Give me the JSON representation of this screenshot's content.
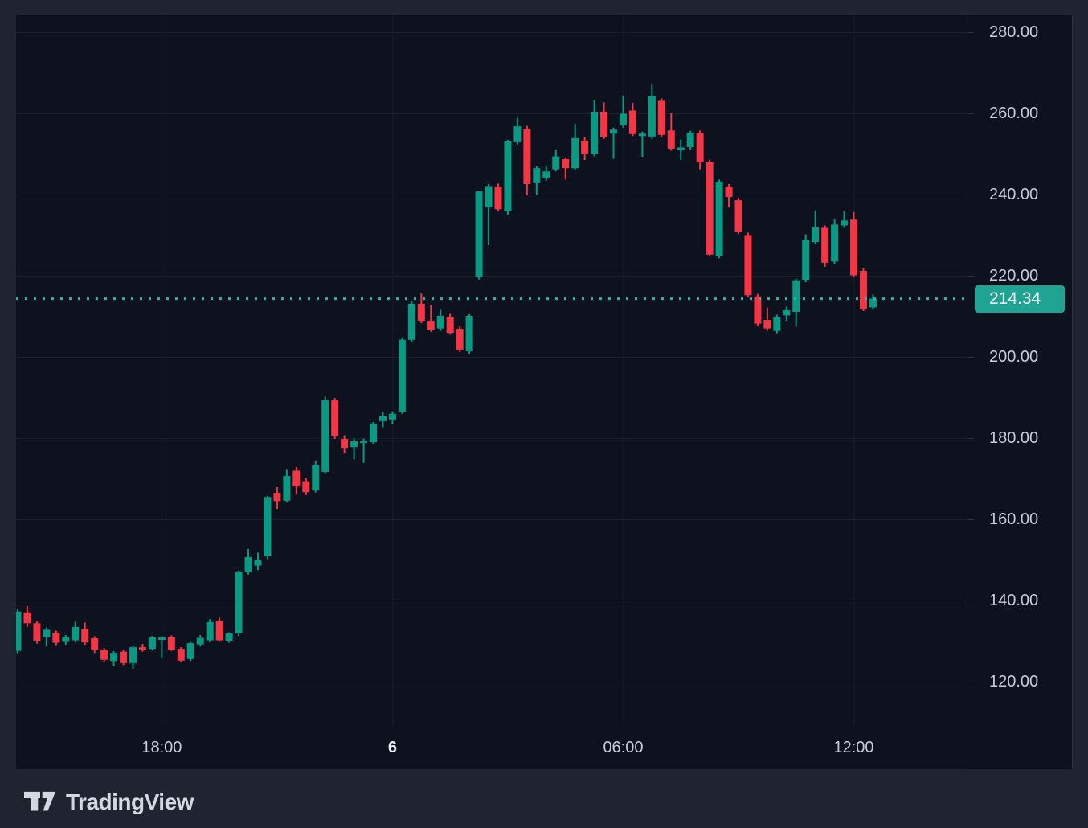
{
  "footer": {
    "brand": "TradingView"
  },
  "last_price_badge": {
    "label": "214.34"
  },
  "colors": {
    "up": "#0a9a84",
    "down": "#f23645",
    "price_line": "#2cb8a0",
    "badge_bg": "#1fa392",
    "grid": "#1a1f2d",
    "axis_border": "#2c3240",
    "axis_text": "#c9cdd8",
    "axis_text_bold": "#eceef2",
    "chart_bg": "#0e121f",
    "outer_bg": "#1f2430"
  },
  "chart_data": {
    "type": "candlestick",
    "title": "",
    "interval_minutes": 15,
    "last_price": 214.34,
    "ylim": [
      109.12,
      284.16
    ],
    "grid": true,
    "y_ticks": [
      {
        "price": 280,
        "label": "280.00"
      },
      {
        "price": 260,
        "label": "260.00"
      },
      {
        "price": 240,
        "label": "240.00"
      },
      {
        "price": 220,
        "label": "220.00"
      },
      {
        "price": 200,
        "label": "200.00"
      },
      {
        "price": 180,
        "label": "180.00"
      },
      {
        "price": 160,
        "label": "160.00"
      },
      {
        "price": 140,
        "label": "140.00"
      },
      {
        "price": 120,
        "label": "120.00"
      }
    ],
    "x_ticks": [
      {
        "index": 15,
        "label": "18:00",
        "bold": false
      },
      {
        "index": 39,
        "label": "6",
        "bold": true
      },
      {
        "index": 63,
        "label": "06:00",
        "bold": false
      },
      {
        "index": 87,
        "label": "12:00",
        "bold": false
      }
    ],
    "ohlc": [
      [
        127.6,
        137.9,
        126.9,
        137.3
      ],
      [
        137.1,
        138.6,
        133.5,
        134.4
      ],
      [
        134.4,
        134.9,
        129.4,
        130.1
      ],
      [
        131.0,
        133.4,
        128.9,
        132.8
      ],
      [
        132.1,
        132.6,
        129.0,
        129.6
      ],
      [
        129.8,
        131.5,
        129.1,
        131.0
      ],
      [
        130.2,
        134.8,
        129.7,
        133.5
      ],
      [
        132.9,
        134.6,
        129.1,
        129.7
      ],
      [
        130.7,
        131.2,
        127.1,
        127.9
      ],
      [
        127.9,
        128.3,
        124.9,
        125.4
      ],
      [
        125.1,
        127.5,
        123.9,
        127.1
      ],
      [
        127.4,
        127.9,
        124.1,
        124.6
      ],
      [
        124.6,
        128.9,
        123.2,
        128.5
      ],
      [
        128.5,
        129.3,
        127.4,
        127.9
      ],
      [
        128.1,
        131.3,
        127.7,
        131.0
      ],
      [
        130.8,
        131.2,
        126.0,
        130.9
      ],
      [
        131.0,
        131.4,
        127.6,
        127.9
      ],
      [
        128.1,
        128.5,
        124.9,
        125.2
      ],
      [
        125.6,
        129.8,
        125.1,
        129.5
      ],
      [
        129.2,
        131.5,
        128.7,
        130.8
      ],
      [
        130.2,
        135.4,
        129.7,
        134.7
      ],
      [
        134.9,
        135.8,
        129.8,
        130.2
      ],
      [
        130.1,
        132.2,
        129.6,
        131.9
      ],
      [
        131.9,
        147.4,
        131.3,
        147.1
      ],
      [
        147.0,
        152.7,
        146.4,
        150.7
      ],
      [
        148.6,
        151.8,
        147.5,
        150.0
      ],
      [
        150.9,
        165.8,
        150.2,
        165.5
      ],
      [
        166.5,
        167.9,
        162.6,
        164.5
      ],
      [
        164.6,
        172.2,
        164.1,
        170.7
      ],
      [
        172.0,
        172.9,
        166.1,
        168.1
      ],
      [
        169.4,
        170.2,
        166.0,
        166.7
      ],
      [
        167.1,
        174.4,
        166.6,
        173.3
      ],
      [
        171.7,
        190.2,
        171.2,
        189.3
      ],
      [
        189.3,
        189.9,
        179.8,
        180.6
      ],
      [
        179.8,
        180.7,
        176.2,
        177.6
      ],
      [
        177.8,
        180.0,
        174.8,
        179.2
      ],
      [
        179.1,
        179.9,
        173.9,
        179.4
      ],
      [
        179.0,
        184.0,
        178.6,
        183.6
      ],
      [
        184.2,
        186.4,
        182.7,
        185.4
      ],
      [
        184.6,
        186.6,
        183.4,
        186.0
      ],
      [
        186.5,
        204.8,
        186.0,
        204.2
      ],
      [
        204.2,
        213.9,
        203.7,
        213.1
      ],
      [
        213.1,
        215.6,
        208.3,
        208.9
      ],
      [
        208.9,
        212.8,
        206.2,
        206.7
      ],
      [
        207.0,
        211.6,
        206.4,
        210.1
      ],
      [
        209.9,
        210.8,
        205.5,
        205.9
      ],
      [
        206.9,
        207.5,
        201.2,
        201.8
      ],
      [
        201.4,
        210.5,
        200.8,
        210.1
      ],
      [
        219.6,
        241.0,
        219.1,
        240.8
      ],
      [
        236.9,
        242.6,
        227.5,
        242.1
      ],
      [
        242.0,
        242.7,
        235.8,
        236.4
      ],
      [
        235.9,
        253.5,
        235.0,
        253.1
      ],
      [
        252.9,
        258.9,
        252.3,
        256.8
      ],
      [
        256.2,
        256.9,
        239.8,
        242.6
      ],
      [
        242.8,
        247.0,
        239.9,
        246.5
      ],
      [
        244.0,
        247.0,
        243.4,
        245.7
      ],
      [
        246.2,
        250.9,
        245.7,
        249.4
      ],
      [
        248.7,
        249.2,
        243.7,
        246.5
      ],
      [
        246.5,
        257.4,
        245.9,
        253.9
      ],
      [
        253.3,
        254.1,
        248.5,
        250.0
      ],
      [
        250.0,
        263.3,
        249.4,
        260.4
      ],
      [
        260.4,
        262.7,
        253.7,
        254.2
      ],
      [
        255.0,
        256.5,
        248.8,
        256.0
      ],
      [
        257.2,
        264.4,
        256.5,
        259.9
      ],
      [
        260.7,
        262.6,
        254.4,
        254.9
      ],
      [
        254.4,
        255.5,
        249.3,
        255.0
      ],
      [
        254.3,
        267.1,
        253.7,
        264.3
      ],
      [
        263.1,
        263.7,
        254.2,
        254.7
      ],
      [
        255.8,
        260.0,
        250.8,
        251.3
      ],
      [
        251.4,
        253.5,
        248.5,
        251.6
      ],
      [
        251.7,
        255.7,
        251.1,
        255.2
      ],
      [
        255.2,
        255.8,
        246.2,
        248.0
      ],
      [
        248.0,
        248.6,
        224.8,
        225.2
      ],
      [
        224.9,
        243.7,
        224.3,
        243.2
      ],
      [
        242.0,
        242.6,
        236.8,
        239.4
      ],
      [
        238.6,
        239.2,
        230.3,
        230.9
      ],
      [
        230.0,
        230.6,
        214.6,
        215.2
      ],
      [
        214.9,
        215.5,
        207.5,
        208.2
      ],
      [
        209.1,
        212.2,
        206.4,
        207.0
      ],
      [
        206.4,
        210.4,
        205.8,
        209.9
      ],
      [
        210.2,
        212.4,
        208.9,
        211.5
      ],
      [
        211.1,
        219.3,
        207.7,
        218.9
      ],
      [
        219.0,
        230.2,
        218.4,
        228.9
      ],
      [
        228.3,
        236.1,
        227.7,
        232.0
      ],
      [
        231.8,
        232.4,
        222.2,
        223.2
      ],
      [
        223.5,
        233.9,
        222.9,
        232.6
      ],
      [
        232.4,
        235.9,
        231.8,
        233.6
      ],
      [
        233.8,
        235.7,
        219.7,
        220.1
      ],
      [
        221.2,
        221.8,
        211.3,
        211.8
      ],
      [
        212.2,
        215.4,
        211.6,
        214.34
      ]
    ]
  }
}
